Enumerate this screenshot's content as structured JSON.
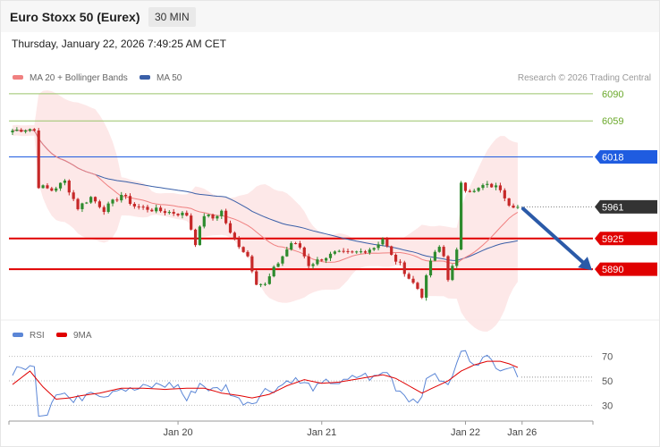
{
  "header": {
    "title": "Euro Stoxx 50 (Eurex)",
    "timeframe": "30 MIN",
    "datetime": "Thursday, January 22, 2026 7:49:25 AM CET"
  },
  "copyright": "Research © 2026 Trading Central",
  "colors": {
    "ma20": "#f08080",
    "ma50": "#3a5fa8",
    "band_fill": "#fde4e4",
    "up": "#2e8b2e",
    "down": "#c62828",
    "resistance": "#9ac46a",
    "blue_level": "#1f5ce0",
    "red_level": "#e00000",
    "last_price": "#333333",
    "arrow": "#2b5aa8",
    "rsi": "#5b86d6",
    "rsi_ma": "#e00000"
  },
  "chart_data": [
    {
      "type": "candlestick",
      "legend": [
        {
          "name": "MA 20 + Bollinger Bands",
          "color": "#f08080"
        },
        {
          "name": "MA 50",
          "color": "#3a5fa8"
        }
      ],
      "ylim": [
        5830,
        6100
      ],
      "levels": [
        {
          "value": 6090,
          "label": "6090",
          "kind": "resistance"
        },
        {
          "value": 6059,
          "label": "6059",
          "kind": "resistance"
        },
        {
          "value": 6018,
          "label": "6018",
          "kind": "pivot"
        },
        {
          "value": 5961,
          "label": "5961",
          "kind": "last"
        },
        {
          "value": 5925,
          "label": "5925",
          "kind": "support"
        },
        {
          "value": 5890,
          "label": "5890",
          "kind": "support"
        }
      ],
      "x_ticks": [
        "Jan 20",
        "Jan 21",
        "Jan 22",
        "Jan 26"
      ],
      "x_tick_index": [
        38,
        71,
        104,
        117
      ],
      "n_bars": 120,
      "close_anchors": [
        [
          0,
          6048
        ],
        [
          4,
          6050
        ],
        [
          5,
          6048
        ],
        [
          6,
          5985
        ],
        [
          9,
          5980
        ],
        [
          12,
          5990
        ],
        [
          15,
          5960
        ],
        [
          18,
          5972
        ],
        [
          21,
          5958
        ],
        [
          25,
          5975
        ],
        [
          28,
          5962
        ],
        [
          32,
          5958
        ],
        [
          36,
          5955
        ],
        [
          40,
          5952
        ],
        [
          42,
          5920
        ],
        [
          44,
          5952
        ],
        [
          46,
          5948
        ],
        [
          48,
          5956
        ],
        [
          50,
          5930
        ],
        [
          54,
          5905
        ],
        [
          56,
          5875
        ],
        [
          58,
          5872
        ],
        [
          60,
          5890
        ],
        [
          62,
          5905
        ],
        [
          64,
          5920
        ],
        [
          66,
          5915
        ],
        [
          68,
          5895
        ],
        [
          71,
          5902
        ],
        [
          74,
          5908
        ],
        [
          77,
          5908
        ],
        [
          80,
          5910
        ],
        [
          83,
          5915
        ],
        [
          85,
          5925
        ],
        [
          87,
          5905
        ],
        [
          89,
          5895
        ],
        [
          91,
          5880
        ],
        [
          93,
          5868
        ],
        [
          94,
          5860
        ],
        [
          96,
          5900
        ],
        [
          98,
          5915
        ],
        [
          99,
          5905
        ],
        [
          100,
          5880
        ],
        [
          101,
          5892
        ],
        [
          102,
          5910
        ],
        [
          103,
          5990
        ],
        [
          104,
          5982
        ],
        [
          106,
          5978
        ],
        [
          108,
          5985
        ],
        [
          110,
          5985
        ],
        [
          112,
          5982
        ],
        [
          114,
          5965
        ],
        [
          116,
          5961
        ]
      ],
      "projection": {
        "from": 5961,
        "to": 5890
      }
    },
    {
      "type": "line",
      "legend": [
        {
          "name": "RSI",
          "color": "#5b86d6"
        },
        {
          "name": "9MA",
          "color": "#e00000"
        }
      ],
      "ylim": [
        20,
        80
      ],
      "y_ticks": [
        70,
        50,
        30
      ],
      "last_value": 53,
      "rsi_anchors": [
        [
          0,
          56
        ],
        [
          3,
          62
        ],
        [
          5,
          60
        ],
        [
          6,
          22
        ],
        [
          8,
          25
        ],
        [
          10,
          42
        ],
        [
          12,
          40
        ],
        [
          14,
          32
        ],
        [
          16,
          37
        ],
        [
          18,
          44
        ],
        [
          21,
          38
        ],
        [
          24,
          45
        ],
        [
          27,
          42
        ],
        [
          30,
          44
        ],
        [
          34,
          47
        ],
        [
          38,
          46
        ],
        [
          40,
          34
        ],
        [
          43,
          48
        ],
        [
          46,
          42
        ],
        [
          49,
          45
        ],
        [
          52,
          34
        ],
        [
          55,
          33
        ],
        [
          58,
          42
        ],
        [
          61,
          45
        ],
        [
          64,
          52
        ],
        [
          67,
          47
        ],
        [
          70,
          44
        ],
        [
          73,
          50
        ],
        [
          76,
          48
        ],
        [
          80,
          55
        ],
        [
          83,
          52
        ],
        [
          86,
          58
        ],
        [
          88,
          45
        ],
        [
          91,
          36
        ],
        [
          93,
          34
        ],
        [
          95,
          48
        ],
        [
          97,
          58
        ],
        [
          99,
          46
        ],
        [
          101,
          52
        ],
        [
          103,
          75
        ],
        [
          106,
          66
        ],
        [
          109,
          68
        ],
        [
          112,
          62
        ],
        [
          114,
          62
        ],
        [
          116,
          53
        ]
      ],
      "ma_anchors": [
        [
          0,
          47
        ],
        [
          4,
          58
        ],
        [
          7,
          45
        ],
        [
          10,
          35
        ],
        [
          13,
          36
        ],
        [
          16,
          38
        ],
        [
          20,
          40
        ],
        [
          25,
          44
        ],
        [
          30,
          44
        ],
        [
          35,
          43
        ],
        [
          40,
          44
        ],
        [
          44,
          44
        ],
        [
          48,
          40
        ],
        [
          52,
          38
        ],
        [
          55,
          36
        ],
        [
          59,
          39
        ],
        [
          63,
          46
        ],
        [
          67,
          51
        ],
        [
          71,
          48
        ],
        [
          75,
          49
        ],
        [
          80,
          52
        ],
        [
          85,
          55
        ],
        [
          88,
          52
        ],
        [
          91,
          46
        ],
        [
          94,
          40
        ],
        [
          97,
          45
        ],
        [
          100,
          50
        ],
        [
          103,
          58
        ],
        [
          106,
          63
        ],
        [
          109,
          66
        ],
        [
          112,
          66
        ],
        [
          114,
          64
        ],
        [
          116,
          61
        ]
      ]
    }
  ]
}
